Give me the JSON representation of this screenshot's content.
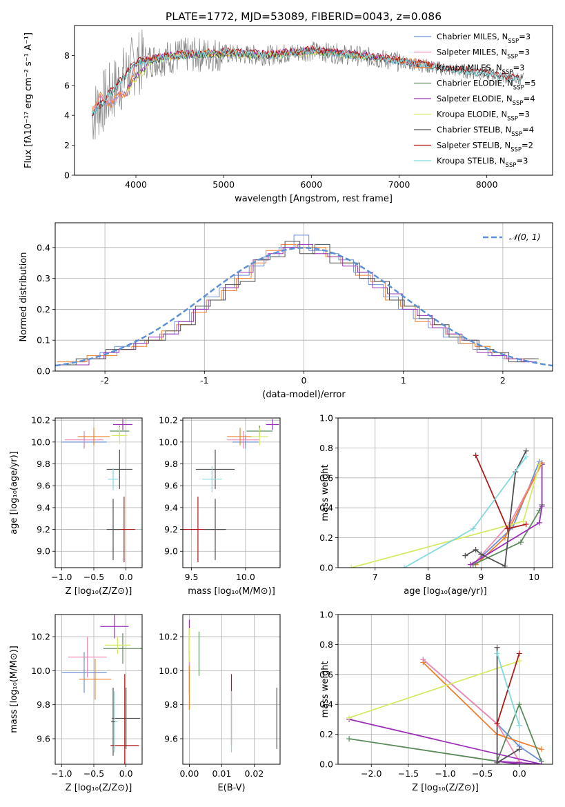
{
  "title": "PLATE=1772, MJD=53089, FIBERID=0043, z=0.086",
  "colors": [
    "#6b8fd6",
    "#f08ab3",
    "#ef7f2a",
    "#5b8a5b",
    "#9b30b8",
    "#d7ea66",
    "#505050",
    "#b01818",
    "#80d9dc"
  ],
  "chart_data": [
    {
      "type": "line",
      "title": "PLATE=1772, MJD=53089, FIBERID=0043, z=0.086",
      "xlabel": "wavelength [Angstrom, rest frame]",
      "ylabel": "Flux [fλ10⁻¹⁷ erg cm⁻² s⁻¹ A⁻¹]",
      "xlim": [
        3300,
        8750
      ],
      "ylim": [
        0,
        10
      ],
      "xticks": [
        4000,
        5000,
        6000,
        7000,
        8000
      ],
      "yticks": [
        0,
        2,
        4,
        6,
        8
      ],
      "grid": false,
      "legend": "top-right",
      "series": [
        {
          "name": "Chabrier MILES, NSSP=3",
          "x": [
            3500,
            3600,
            3700,
            3800,
            3900,
            4000,
            4200,
            4500,
            5000,
            5500,
            6000,
            6500,
            7000,
            7400
          ],
          "y": [
            4.0,
            5.2,
            4.6,
            5.3,
            5.4,
            7.5,
            7.8,
            8.0,
            8.1,
            8.0,
            8.3,
            8.0,
            7.6,
            7.3
          ]
        },
        {
          "name": "Salpeter MILES, NSSP=3",
          "x": [
            3500,
            3600,
            3700,
            3800,
            3900,
            4000,
            4200,
            4500,
            5000,
            5500,
            6000,
            6500,
            7000,
            7400
          ],
          "y": [
            4.1,
            5.3,
            4.7,
            5.4,
            5.5,
            7.6,
            7.9,
            8.1,
            8.2,
            8.1,
            8.4,
            8.1,
            7.7,
            7.4
          ]
        },
        {
          "name": "Kroupa MILES, NSSP=3",
          "x": [
            3500,
            3600,
            3700,
            3800,
            3900,
            4000,
            4200,
            4500,
            5000,
            5500,
            6000,
            6500,
            7000,
            7400
          ],
          "y": [
            4.2,
            5.4,
            4.6,
            5.5,
            5.3,
            7.5,
            7.8,
            8.0,
            8.2,
            8.0,
            8.3,
            8.0,
            7.7,
            7.3
          ]
        },
        {
          "name": "Chabrier ELODIE, NSSP=5",
          "x": [
            3900,
            4200,
            4500,
            5000,
            5500,
            6000,
            6500,
            6800
          ],
          "y": [
            5.8,
            7.8,
            8.0,
            8.1,
            8.0,
            8.3,
            8.0,
            7.8
          ]
        },
        {
          "name": "Salpeter ELODIE, NSSP=4",
          "x": [
            3900,
            4200,
            4500,
            5000,
            5500,
            6000,
            6500,
            6800
          ],
          "y": [
            5.9,
            7.8,
            8.1,
            8.2,
            8.1,
            8.3,
            8.1,
            7.9
          ]
        },
        {
          "name": "Kroupa ELODIE, NSSP=3",
          "x": [
            3900,
            4200,
            4500,
            5000,
            5500,
            6000,
            6500,
            6800
          ],
          "y": [
            5.7,
            7.7,
            8.0,
            8.1,
            8.0,
            8.2,
            8.0,
            7.8
          ]
        },
        {
          "name": "Chabrier STELIB, NSSP=4",
          "x": [
            3500,
            4000,
            4500,
            5000,
            5500,
            6000,
            6500,
            7000,
            7500,
            8000,
            8400
          ],
          "y": [
            4.0,
            7.5,
            8.0,
            8.1,
            8.0,
            8.3,
            8.0,
            7.6,
            7.1,
            6.8,
            6.4
          ]
        },
        {
          "name": "Salpeter STELIB, NSSP=2",
          "x": [
            3500,
            4000,
            4500,
            5000,
            5500,
            6000,
            6500,
            7000,
            7500,
            8000,
            8400
          ],
          "y": [
            4.1,
            7.6,
            8.1,
            8.3,
            8.1,
            8.4,
            8.1,
            7.7,
            7.2,
            6.9,
            6.4
          ]
        },
        {
          "name": "Kroupa STELIB, NSSP=3",
          "x": [
            3500,
            4000,
            4500,
            5000,
            5500,
            6000,
            6500,
            7000,
            7500,
            8000,
            8400
          ],
          "y": [
            4.0,
            7.5,
            8.0,
            8.2,
            8.0,
            8.3,
            8.0,
            7.6,
            7.1,
            6.8,
            6.3
          ]
        }
      ]
    },
    {
      "type": "histogram",
      "xlabel": "(data-model)/error",
      "ylabel": "Normed distribution",
      "xlim": [
        -2.5,
        2.5
      ],
      "ylim": [
        0,
        0.48
      ],
      "xticks": [
        -2,
        -1,
        0,
        1,
        2
      ],
      "yticks": [
        0.0,
        0.1,
        0.2,
        0.3,
        0.4
      ],
      "grid": true,
      "legend": "top-right",
      "reference_curve": {
        "name": "𝒩(0, 1)",
        "mean": 0,
        "sigma": 1
      },
      "bin_width": 0.1,
      "series": [
        {
          "values": [
            0.02,
            0.03,
            0.04,
            0.06,
            0.08,
            0.09,
            0.1,
            0.12,
            0.16,
            0.2,
            0.24,
            0.27,
            0.31,
            0.34,
            0.37,
            0.4,
            0.44,
            0.39,
            0.38,
            0.36,
            0.32,
            0.28,
            0.24,
            0.2,
            0.17,
            0.14,
            0.11,
            0.09,
            0.07,
            0.05,
            0.04,
            0.03
          ]
        },
        {
          "values": [
            0.03,
            0.03,
            0.05,
            0.05,
            0.07,
            0.08,
            0.1,
            0.13,
            0.15,
            0.19,
            0.23,
            0.26,
            0.3,
            0.35,
            0.39,
            0.41,
            0.4,
            0.4,
            0.37,
            0.35,
            0.31,
            0.29,
            0.23,
            0.21,
            0.16,
            0.15,
            0.12,
            0.09,
            0.08,
            0.06,
            0.04,
            0.04
          ]
        },
        {
          "values": [
            0.02,
            0.02,
            0.04,
            0.06,
            0.07,
            0.09,
            0.11,
            0.12,
            0.16,
            0.2,
            0.23,
            0.27,
            0.32,
            0.36,
            0.38,
            0.4,
            0.41,
            0.38,
            0.37,
            0.34,
            0.32,
            0.27,
            0.25,
            0.2,
            0.18,
            0.14,
            0.12,
            0.1,
            0.06,
            0.05,
            0.04,
            0.03
          ]
        },
        {
          "values": [
            0.02,
            0.04,
            0.04,
            0.07,
            0.07,
            0.1,
            0.1,
            0.13,
            0.15,
            0.21,
            0.23,
            0.28,
            0.29,
            0.36,
            0.37,
            0.42,
            0.38,
            0.41,
            0.35,
            0.35,
            0.3,
            0.29,
            0.23,
            0.21,
            0.17,
            0.15,
            0.11,
            0.1,
            0.07,
            0.06,
            0.03,
            0.04
          ]
        }
      ]
    },
    {
      "type": "scatter",
      "xlabel": "Z [log₁₀(Z/Z⊙)]",
      "ylabel": "age  [log₁₀(age/yr)]",
      "xlim": [
        -1.1,
        0.25
      ],
      "ylim": [
        8.85,
        10.22
      ],
      "xticks": [
        -1.0,
        -0.5,
        0.0
      ],
      "yticks": [
        9.0,
        9.2,
        9.4,
        9.6,
        9.8,
        10.0,
        10.2
      ],
      "grid": true,
      "points": [
        {
          "c": 0,
          "x": -0.65,
          "y": 10.0,
          "xerr": 0.35,
          "yerr": 0.06
        },
        {
          "c": 1,
          "x": -0.65,
          "y": 10.02,
          "xerr": 0.3,
          "yerr": 0.08
        },
        {
          "c": 2,
          "x": -0.5,
          "y": 10.05,
          "xerr": 0.25,
          "yerr": 0.08
        },
        {
          "c": 3,
          "x": -0.1,
          "y": 10.1,
          "xerr": 0.15,
          "yerr": 0.05
        },
        {
          "c": 4,
          "x": -0.05,
          "y": 10.16,
          "xerr": 0.15,
          "yerr": 0.05
        },
        {
          "c": 5,
          "x": -0.1,
          "y": 10.06,
          "xerr": 0.12,
          "yerr": 0.08
        },
        {
          "c": 6,
          "x": -0.1,
          "y": 9.75,
          "xerr": 0.2,
          "yerr": 0.18
        },
        {
          "c": 7,
          "x": -0.03,
          "y": 9.2,
          "xerr": 0.17,
          "yerr": 0.3
        },
        {
          "c": 8,
          "x": -0.2,
          "y": 9.66,
          "xerr": 0.08,
          "yerr": 0.1
        },
        {
          "c": 6,
          "x": -0.2,
          "y": 9.2,
          "xerr": 0.1,
          "yerr": 0.28
        }
      ]
    },
    {
      "type": "scatter",
      "xlabel": "mass [log₁₀(M/M⊙)]",
      "ylabel": "",
      "xlim": [
        9.42,
        10.32
      ],
      "ylim": [
        8.85,
        10.22
      ],
      "xticks": [
        9.5,
        10.0
      ],
      "yticks": [
        9.0,
        9.2,
        9.4,
        9.6,
        9.8,
        10.0,
        10.2
      ],
      "grid": true,
      "points": [
        {
          "c": 0,
          "x": 10.0,
          "y": 10.0,
          "xerr": 0.12,
          "yerr": 0.06
        },
        {
          "c": 1,
          "x": 9.98,
          "y": 10.02,
          "xerr": 0.15,
          "yerr": 0.08
        },
        {
          "c": 2,
          "x": 9.95,
          "y": 10.05,
          "xerr": 0.12,
          "yerr": 0.08
        },
        {
          "c": 3,
          "x": 10.13,
          "y": 10.1,
          "xerr": 0.12,
          "yerr": 0.05
        },
        {
          "c": 4,
          "x": 10.25,
          "y": 10.16,
          "xerr": 0.06,
          "yerr": 0.05
        },
        {
          "c": 5,
          "x": 10.13,
          "y": 10.05,
          "xerr": 0.08,
          "yerr": 0.08
        },
        {
          "c": 6,
          "x": 9.72,
          "y": 9.75,
          "xerr": 0.18,
          "yerr": 0.18
        },
        {
          "c": 7,
          "x": 9.56,
          "y": 9.2,
          "xerr": 0.25,
          "yerr": 0.3
        },
        {
          "c": 8,
          "x": 9.69,
          "y": 9.66,
          "xerr": 0.09,
          "yerr": 0.12
        },
        {
          "c": 6,
          "x": 9.72,
          "y": 9.2,
          "xerr": 0.1,
          "yerr": 0.28
        }
      ]
    },
    {
      "type": "line",
      "xlabel": "age  [log₁₀(age/yr)]",
      "ylabel": "mass weight",
      "xlim": [
        6.3,
        10.35
      ],
      "ylim": [
        0.0,
        1.0
      ],
      "xticks": [
        7,
        8,
        9,
        10
      ],
      "yticks": [
        0.0,
        0.2,
        0.4,
        0.6,
        0.8,
        1.0
      ],
      "grid": true,
      "series": [
        {
          "c": 0,
          "x": [
            8.85,
            9.6,
            10.1
          ],
          "y": [
            0.02,
            0.27,
            0.71
          ]
        },
        {
          "c": 1,
          "x": [
            8.85,
            9.55,
            10.15
          ],
          "y": [
            0.02,
            0.3,
            0.7
          ]
        },
        {
          "c": 2,
          "x": [
            8.9,
            9.45,
            10.15
          ],
          "y": [
            0.02,
            0.2,
            0.7
          ]
        },
        {
          "c": 3,
          "x": [
            8.85,
            9.75,
            10.1,
            10.15
          ],
          "y": [
            0.02,
            0.17,
            0.38,
            0.42
          ]
        },
        {
          "c": 4,
          "x": [
            8.8,
            10.1,
            10.15,
            10.15
          ],
          "y": [
            0.02,
            0.3,
            0.41,
            0.69
          ]
        },
        {
          "c": 5,
          "x": [
            6.55,
            9.8,
            10.1
          ],
          "y": [
            0.0,
            0.31,
            0.69
          ]
        },
        {
          "c": 6,
          "x": [
            8.7,
            8.9,
            9.0,
            9.45,
            9.65,
            9.85
          ],
          "y": [
            0.08,
            0.12,
            0.09,
            0.01,
            0.64,
            0.78
          ]
        },
        {
          "c": 7,
          "x": [
            8.9,
            9.5,
            9.85
          ],
          "y": [
            0.75,
            0.26,
            0.29
          ]
        },
        {
          "c": 8,
          "x": [
            7.55,
            8.85,
            9.85
          ],
          "y": [
            0.0,
            0.26,
            0.74
          ]
        }
      ]
    },
    {
      "type": "scatter",
      "xlabel": "Z [log₁₀(Z/Z⊙)]",
      "ylabel": "mass [log₁₀(M/M⊙)]",
      "xlim": [
        -1.1,
        0.25
      ],
      "ylim": [
        9.45,
        10.33
      ],
      "xticks": [
        -1.0,
        -0.5,
        0.0
      ],
      "yticks": [
        9.6,
        9.8,
        10.0,
        10.2
      ],
      "grid": true,
      "points": [
        {
          "c": 0,
          "x": -0.65,
          "y": 9.99,
          "xerr": 0.35,
          "yerr": 0.12
        },
        {
          "c": 1,
          "x": -0.6,
          "y": 10.08,
          "xerr": 0.3,
          "yerr": 0.12
        },
        {
          "c": 2,
          "x": -0.48,
          "y": 9.95,
          "xerr": 0.25,
          "yerr": 0.12
        },
        {
          "c": 3,
          "x": -0.05,
          "y": 10.13,
          "xerr": 0.3,
          "yerr": 0.09
        },
        {
          "c": 4,
          "x": -0.18,
          "y": 10.26,
          "xerr": 0.22,
          "yerr": 0.07
        },
        {
          "c": 5,
          "x": -0.13,
          "y": 10.15,
          "xerr": 0.2,
          "yerr": 0.05
        },
        {
          "c": 6,
          "x": 0.0,
          "y": 9.72,
          "xerr": 0.22,
          "yerr": 0.18
        },
        {
          "c": 7,
          "x": -0.02,
          "y": 9.56,
          "xerr": 0.22,
          "yerr": 0.42
        },
        {
          "c": 8,
          "x": -0.18,
          "y": 9.7,
          "xerr": 0.05,
          "yerr": 0.18
        },
        {
          "c": 6,
          "x": -0.2,
          "y": 9.7,
          "xerr": 0.03,
          "yerr": 0.2
        }
      ]
    },
    {
      "type": "scatter",
      "xlabel": "E(B-V)",
      "ylabel": "",
      "xlim": [
        -0.002,
        0.028
      ],
      "ylim": [
        9.45,
        10.33
      ],
      "xticks": [
        0.0,
        0.01,
        0.02
      ],
      "yticks": [
        9.6,
        9.8,
        10.0,
        10.2
      ],
      "grid": true,
      "points": [
        {
          "c": 0,
          "x": 0.0,
          "y": 9.99,
          "xerr": 0,
          "yerr": 0.12
        },
        {
          "c": 1,
          "x": 0.0,
          "y": 10.08,
          "xerr": 0,
          "yerr": 0.12
        },
        {
          "c": 2,
          "x": 0.0,
          "y": 9.9,
          "xerr": 0,
          "yerr": 0.13
        },
        {
          "c": 3,
          "x": 0.003,
          "y": 10.1,
          "xerr": 0,
          "yerr": 0.13
        },
        {
          "c": 4,
          "x": 0.0,
          "y": 10.2,
          "xerr": 0,
          "yerr": 0.1
        },
        {
          "c": 5,
          "x": 0.0,
          "y": 10.15,
          "xerr": 0,
          "yerr": 0.1
        },
        {
          "c": 6,
          "x": 0.027,
          "y": 9.72,
          "xerr": 0,
          "yerr": 0.18
        },
        {
          "c": 7,
          "x": 0.013,
          "y": 9.77,
          "xerr": 0,
          "yerr": 0.21
        },
        {
          "c": 8,
          "x": 0.013,
          "y": 9.7,
          "xerr": 0,
          "yerr": 0.18
        }
      ]
    },
    {
      "type": "line",
      "xlabel": "Z [log₁₀(Z/Z⊙)]",
      "ylabel": "mass weight",
      "xlim": [
        -2.45,
        0.45
      ],
      "ylim": [
        0.0,
        1.0
      ],
      "xticks": [
        -2.0,
        -1.5,
        -1.0,
        -0.5,
        0.0
      ],
      "yticks": [
        0.0,
        0.2,
        0.4,
        0.6,
        0.8,
        1.0
      ],
      "grid": true,
      "series": [
        {
          "c": 0,
          "x": [
            -1.3,
            -0.3,
            0.0,
            0.3
          ],
          "y": [
            0.7,
            0.27,
            0.12,
            0.02
          ]
        },
        {
          "c": 1,
          "x": [
            -1.3,
            -0.3,
            0.0
          ],
          "y": [
            0.7,
            0.27,
            0.02
          ]
        },
        {
          "c": 2,
          "x": [
            -1.3,
            -0.3,
            0.3
          ],
          "y": [
            0.68,
            0.2,
            0.1
          ]
        },
        {
          "c": 3,
          "x": [
            -2.3,
            -0.3,
            0.0,
            0.3
          ],
          "y": [
            0.17,
            0.02,
            0.4,
            0.02
          ]
        },
        {
          "c": 4,
          "x": [
            -2.3,
            0.3,
            -0.3,
            0.0
          ],
          "y": [
            0.3,
            0.0,
            0.02,
            0.0
          ]
        },
        {
          "c": 5,
          "x": [
            -2.3,
            0.0
          ],
          "y": [
            0.31,
            0.69
          ]
        },
        {
          "c": 6,
          "x": [
            -0.3,
            -0.3,
            0.0
          ],
          "y": [
            0.78,
            0.01,
            0.1
          ]
        },
        {
          "c": 7,
          "x": [
            -0.3,
            0.0
          ],
          "y": [
            0.27,
            0.74
          ]
        },
        {
          "c": 8,
          "x": [
            -0.3,
            0.0
          ],
          "y": [
            0.74,
            0.26
          ]
        }
      ]
    }
  ]
}
